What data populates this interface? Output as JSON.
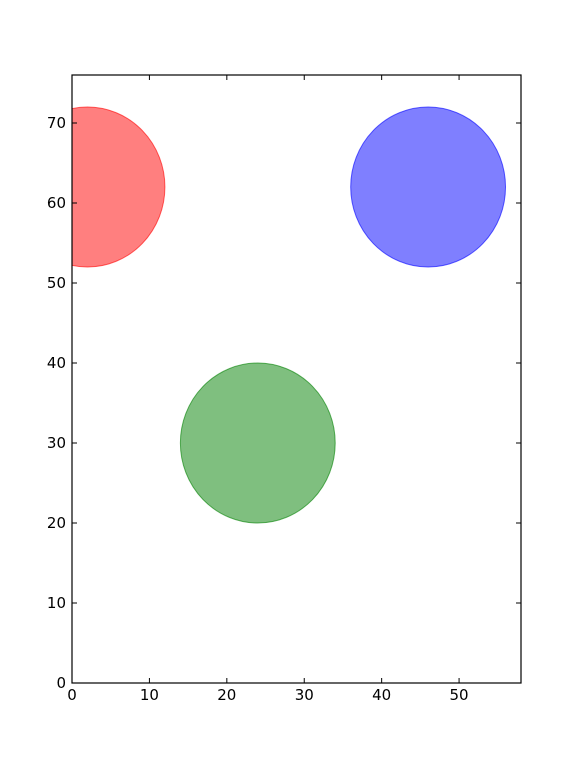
{
  "chart_data": {
    "type": "scatter",
    "title": "",
    "xlabel": "",
    "ylabel": "",
    "xlim": [
      0,
      58
    ],
    "ylim": [
      0,
      76
    ],
    "xticks": [
      0,
      10,
      20,
      30,
      40,
      50
    ],
    "yticks": [
      0,
      10,
      20,
      30,
      40,
      50,
      60,
      70
    ],
    "grid": false,
    "legend": "none",
    "points": [
      {
        "x": 2,
        "y": 62,
        "radius": 10,
        "color": "#ff0000",
        "opacity": 0.5
      },
      {
        "x": 46,
        "y": 62,
        "radius": 10,
        "color": "#0000ff",
        "opacity": 0.5
      },
      {
        "x": 24,
        "y": 30,
        "radius": 10,
        "color": "#008000",
        "opacity": 0.5
      }
    ]
  }
}
